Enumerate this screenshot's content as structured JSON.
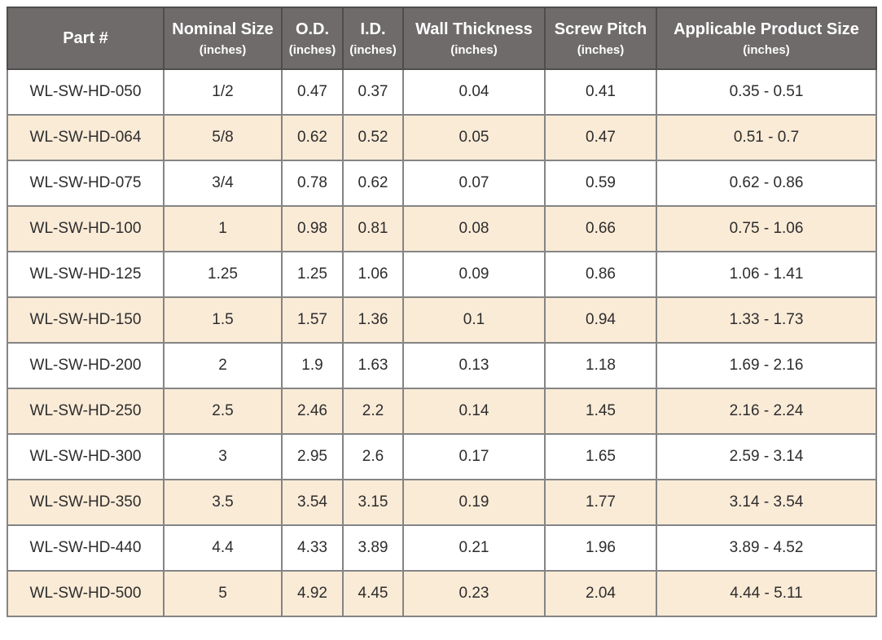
{
  "table": {
    "columns": [
      {
        "label": "Part #",
        "sublabel": ""
      },
      {
        "label": "Nominal Size",
        "sublabel": "(inches)"
      },
      {
        "label": "O.D.",
        "sublabel": "(inches)"
      },
      {
        "label": "I.D.",
        "sublabel": "(inches)"
      },
      {
        "label": "Wall Thickness",
        "sublabel": "(inches)"
      },
      {
        "label": "Screw Pitch",
        "sublabel": "(inches)"
      },
      {
        "label": "Applicable Product Size",
        "sublabel": "(inches)"
      }
    ],
    "rows": [
      [
        "WL-SW-HD-050",
        "1/2",
        "0.47",
        "0.37",
        "0.04",
        "0.41",
        "0.35 - 0.51"
      ],
      [
        "WL-SW-HD-064",
        "5/8",
        "0.62",
        "0.52",
        "0.05",
        "0.47",
        "0.51 - 0.7"
      ],
      [
        "WL-SW-HD-075",
        "3/4",
        "0.78",
        "0.62",
        "0.07",
        "0.59",
        "0.62 - 0.86"
      ],
      [
        "WL-SW-HD-100",
        "1",
        "0.98",
        "0.81",
        "0.08",
        "0.66",
        "0.75 - 1.06"
      ],
      [
        "WL-SW-HD-125",
        "1.25",
        "1.25",
        "1.06",
        "0.09",
        "0.86",
        "1.06 - 1.41"
      ],
      [
        "WL-SW-HD-150",
        "1.5",
        "1.57",
        "1.36",
        "0.1",
        "0.94",
        "1.33 - 1.73"
      ],
      [
        "WL-SW-HD-200",
        "2",
        "1.9",
        "1.63",
        "0.13",
        "1.18",
        "1.69 - 2.16"
      ],
      [
        "WL-SW-HD-250",
        "2.5",
        "2.46",
        "2.2",
        "0.14",
        "1.45",
        "2.16 - 2.24"
      ],
      [
        "WL-SW-HD-300",
        "3",
        "2.95",
        "2.6",
        "0.17",
        "1.65",
        "2.59 - 3.14"
      ],
      [
        "WL-SW-HD-350",
        "3.5",
        "3.54",
        "3.15",
        "0.19",
        "1.77",
        "3.14 - 3.54"
      ],
      [
        "WL-SW-HD-440",
        "4.4",
        "4.33",
        "3.89",
        "0.21",
        "1.96",
        "3.89 - 4.52"
      ],
      [
        "WL-SW-HD-500",
        "5",
        "4.92",
        "4.45",
        "0.23",
        "2.04",
        "4.44 - 5.11"
      ]
    ]
  },
  "colors": {
    "header_bg": "#6f6b6b",
    "header_text": "#ffffff",
    "header_border": "#4f4c4c",
    "cell_border": "#848484",
    "row_bg": "#ffffff",
    "row_alt_bg": "#faebd7",
    "text": "#2d2d2d"
  }
}
